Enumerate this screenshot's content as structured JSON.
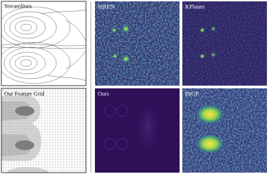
{
  "panels": {
    "streamlines": "Streamlines",
    "feature_grid": "Our Feature Grid",
    "siren": "SIREN",
    "kplanes": "KPlanes",
    "ours": "Ours",
    "ingp": "INGP"
  }
}
